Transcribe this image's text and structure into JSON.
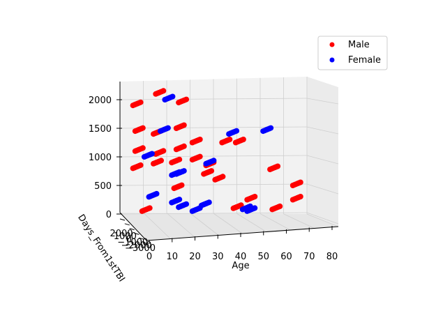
{
  "chart_data": {
    "type": "scatter",
    "projection": "3d",
    "xlabel": "Age",
    "ylabel": "Days_From1stTBI",
    "zlabel": "",
    "xlim": [
      0,
      80
    ],
    "zlim": [
      0,
      2000
    ],
    "x_ticks": [
      "0",
      "10",
      "20",
      "30",
      "40",
      "50",
      "60",
      "70",
      "80"
    ],
    "y_ticks": [
      "2000",
      "1000",
      "0",
      "−1000",
      "−2000",
      "−3000"
    ],
    "z_ticks": [
      "0",
      "500",
      "1000",
      "1500",
      "2000"
    ],
    "legend_position": "upper-right",
    "grid": true,
    "series": [
      {
        "name": "Male",
        "color": "#ff0000",
        "clusters": [
          {
            "x": 2,
            "z": 1900
          },
          {
            "x": 12,
            "z": 2100
          },
          {
            "x": 22,
            "z": 1950
          },
          {
            "x": 3,
            "z": 1450
          },
          {
            "x": 11,
            "z": 1400
          },
          {
            "x": 21,
            "z": 1500
          },
          {
            "x": 3,
            "z": 1100
          },
          {
            "x": 12,
            "z": 1050
          },
          {
            "x": 21,
            "z": 1130
          },
          {
            "x": 28,
            "z": 1250
          },
          {
            "x": 41,
            "z": 1250
          },
          {
            "x": 47,
            "z": 1250
          },
          {
            "x": 2,
            "z": 800
          },
          {
            "x": 11,
            "z": 880
          },
          {
            "x": 19,
            "z": 900
          },
          {
            "x": 28,
            "z": 950
          },
          {
            "x": 34,
            "z": 850
          },
          {
            "x": 20,
            "z": 450
          },
          {
            "x": 33,
            "z": 700
          },
          {
            "x": 62,
            "z": 780
          },
          {
            "x": 72,
            "z": 500
          },
          {
            "x": 63,
            "z": 80
          },
          {
            "x": 46,
            "z": 100
          },
          {
            "x": 52,
            "z": 250
          },
          {
            "x": 72,
            "z": 250
          },
          {
            "x": 6,
            "z": 50
          },
          {
            "x": 38,
            "z": 600
          }
        ]
      },
      {
        "name": "Female",
        "color": "#0000ff",
        "clusters": [
          {
            "x": 16,
            "z": 2000
          },
          {
            "x": 14,
            "z": 1450
          },
          {
            "x": 7,
            "z": 1000
          },
          {
            "x": 21,
            "z": 700
          },
          {
            "x": 34,
            "z": 880
          },
          {
            "x": 44,
            "z": 1400
          },
          {
            "x": 59,
            "z": 1450
          },
          {
            "x": 9,
            "z": 300
          },
          {
            "x": 19,
            "z": 200
          },
          {
            "x": 32,
            "z": 150
          },
          {
            "x": 22,
            "z": 120
          },
          {
            "x": 28,
            "z": 50
          },
          {
            "x": 52,
            "z": 50
          },
          {
            "x": 50,
            "z": 80
          },
          {
            "x": 19,
            "z": 680
          }
        ]
      }
    ]
  }
}
